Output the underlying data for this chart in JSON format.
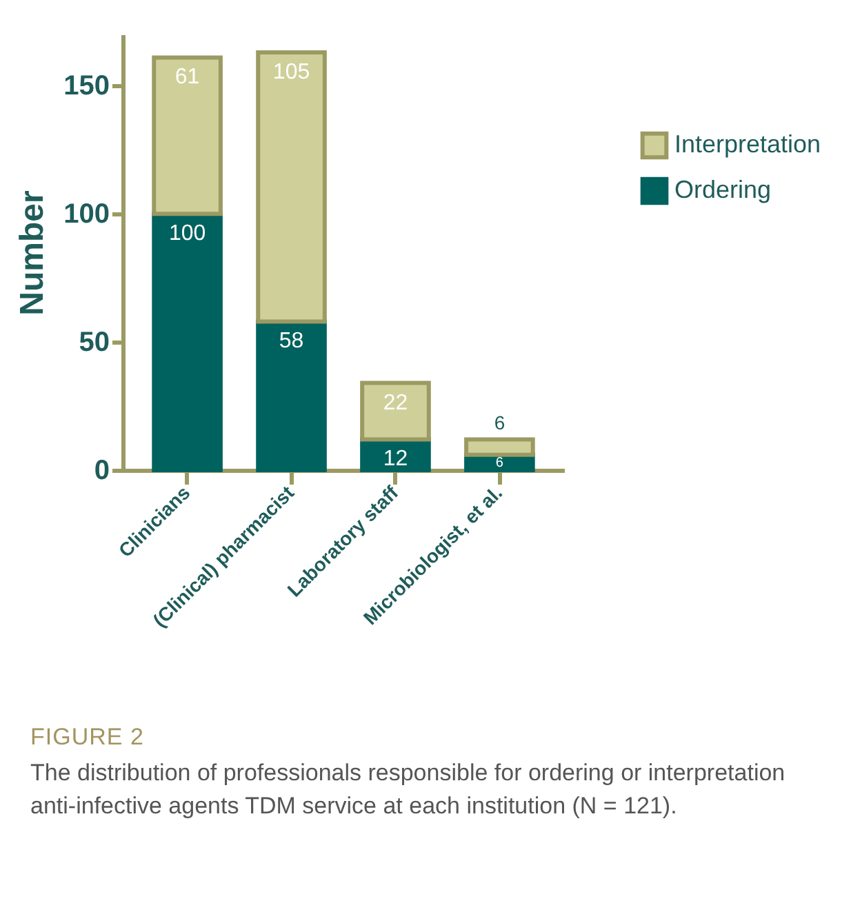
{
  "chart_data": {
    "type": "bar",
    "title": "FIGURE 2",
    "subtitle": "The distribution of professionals responsible for ordering or interpretation anti-infective agents TDM service at each institution (N = 121).",
    "ylabel": "Number",
    "categories": [
      "Clinicians",
      "(Clinical) pharmacist",
      "Laboratory staff",
      "Microbiologist, et al."
    ],
    "series": [
      {
        "name": "Ordering",
        "color": "#00625e",
        "values": [
          100,
          58,
          12,
          6
        ]
      },
      {
        "name": "Interpretation",
        "color": "#cfcf9a",
        "values": [
          61,
          105,
          22,
          6
        ]
      }
    ],
    "stacked": true,
    "ylim": [
      0,
      170
    ],
    "yticks": [
      0,
      50,
      100,
      150
    ],
    "data_labels": true,
    "legend": "top right",
    "grid": false
  }
}
